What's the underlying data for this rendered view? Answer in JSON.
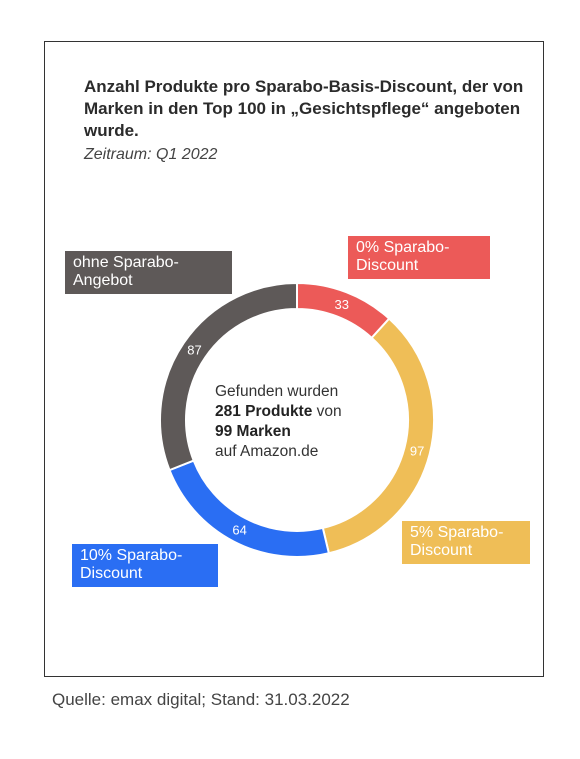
{
  "title": "Anzahl Produkte pro Sparabo-Basis-Discount, der von Marken in den Top 100 in „Gesichtspflege“ angeboten wurde.",
  "subtitle": "Zeitraum: Q1 2022",
  "center": {
    "line1": "Gefunden wurden",
    "products_bold": "281 Produkte",
    "products_rest": " von",
    "brands_bold": "99 Marken",
    "line4": "auf Amazon.de"
  },
  "source": "Quelle: emax digital; Stand: 31.03.2022",
  "chart_data": {
    "type": "pie",
    "style": "donut",
    "total": 281,
    "slices": [
      {
        "label": "0% Sparabo-Discount",
        "value": 33,
        "color": "#ec5a58"
      },
      {
        "label": "5% Sparabo-Discount",
        "value": 97,
        "color": "#efbe57"
      },
      {
        "label": "10% Sparabo-Discount",
        "value": 64,
        "color": "#2a6ef3"
      },
      {
        "label": "ohne Sparabo-Angebot",
        "value": 87,
        "color": "#5e5958"
      }
    ]
  }
}
